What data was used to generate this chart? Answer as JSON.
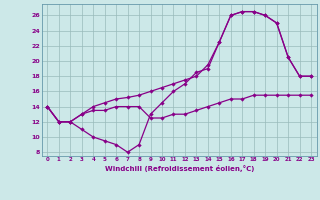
{
  "xlabel": "Windchill (Refroidissement éolien,°C)",
  "bg_color": "#cce8e8",
  "line_color": "#880088",
  "grid_color": "#99bbbb",
  "spine_color": "#6699aa",
  "xlim": [
    -0.5,
    23.5
  ],
  "ylim": [
    7.5,
    27.5
  ],
  "yticks": [
    8,
    10,
    12,
    14,
    16,
    18,
    20,
    22,
    24,
    26
  ],
  "xticks": [
    0,
    1,
    2,
    3,
    4,
    5,
    6,
    7,
    8,
    9,
    10,
    11,
    12,
    13,
    14,
    15,
    16,
    17,
    18,
    19,
    20,
    21,
    22,
    23
  ],
  "curve1_x": [
    0,
    1,
    2,
    3,
    4,
    5,
    6,
    7,
    8,
    9,
    10,
    11,
    12,
    13,
    14,
    15,
    16,
    17,
    18,
    19,
    20,
    21,
    22,
    23
  ],
  "curve1_y": [
    14,
    12,
    12,
    11,
    10,
    9.5,
    9,
    8,
    9,
    13,
    14.5,
    16,
    17,
    18.5,
    19,
    22.5,
    26,
    26.5,
    26.5,
    26,
    25,
    20.5,
    18,
    18
  ],
  "curve2_x": [
    0,
    1,
    2,
    3,
    4,
    5,
    6,
    7,
    8,
    9,
    10,
    11,
    12,
    13,
    14,
    15,
    16,
    17,
    18,
    19,
    20,
    21,
    22,
    23
  ],
  "curve2_y": [
    14,
    12,
    12,
    13,
    14,
    14.5,
    15,
    15.2,
    15.5,
    16,
    16.5,
    17,
    17.5,
    18,
    19.5,
    22.5,
    26,
    26.5,
    26.5,
    26,
    25,
    20.5,
    18,
    18
  ],
  "curve3_x": [
    0,
    1,
    2,
    3,
    4,
    5,
    6,
    7,
    8,
    9,
    10,
    11,
    12,
    13,
    14,
    15,
    16,
    17,
    18,
    19,
    20,
    21,
    22,
    23
  ],
  "curve3_y": [
    14,
    12,
    12,
    13,
    13.5,
    13.5,
    14,
    14,
    14,
    12.5,
    12.5,
    13,
    13,
    13.5,
    14,
    14.5,
    15,
    15,
    15.5,
    15.5,
    15.5,
    15.5,
    15.5,
    15.5
  ]
}
